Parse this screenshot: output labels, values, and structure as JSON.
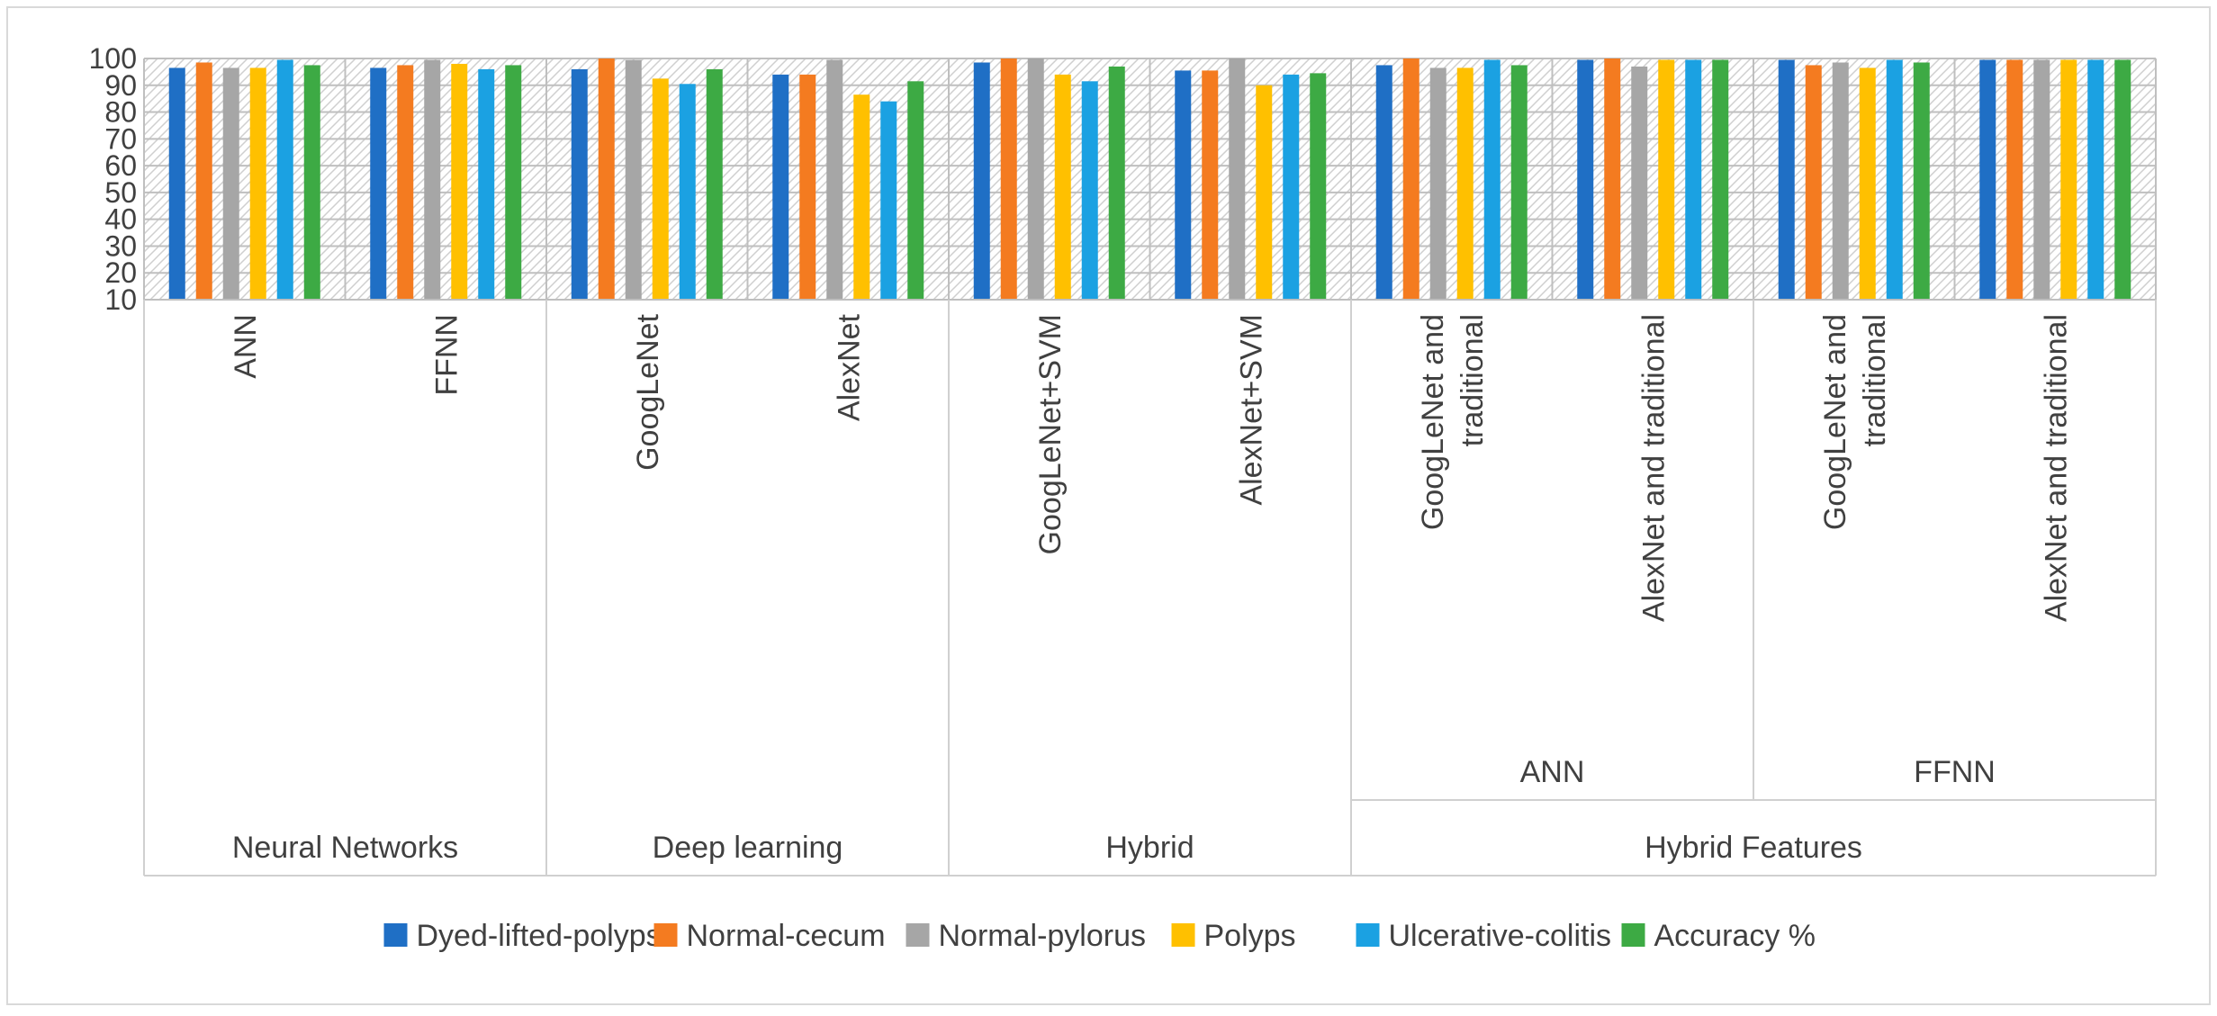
{
  "chart_data": {
    "type": "bar",
    "title": "",
    "xlabel": "",
    "ylabel": "",
    "ylim": [
      10,
      100
    ],
    "yticks": [
      10,
      20,
      30,
      40,
      50,
      60,
      70,
      80,
      90,
      100
    ],
    "grid": true,
    "legend_position": "bottom",
    "categories": [
      "ANN",
      "FFNN",
      "GoogLeNet",
      "AlexNet",
      "GoogLeNet+SVM",
      "AlexNet+SVM",
      "GoogLeNet and traditional",
      "AlexNet and traditional",
      "GoogLeNet and traditional",
      "AlexNet and traditional"
    ],
    "category_lines": [
      [
        "ANN"
      ],
      [
        "FFNN"
      ],
      [
        "GoogLeNet"
      ],
      [
        "AlexNet"
      ],
      [
        "GoogLeNet+SVM"
      ],
      [
        "AlexNet+SVM"
      ],
      [
        "GoogLeNet and",
        "traditional"
      ],
      [
        "AlexNet and traditional"
      ],
      [
        "GoogLeNet and",
        "traditional"
      ],
      [
        "AlexNet and traditional"
      ]
    ],
    "subgroups": [
      {
        "label": "ANN",
        "start": 6,
        "end": 7
      },
      {
        "label": "FFNN",
        "start": 8,
        "end": 9
      }
    ],
    "groups": [
      {
        "label": "Neural Networks",
        "start": 0,
        "end": 1
      },
      {
        "label": "Deep learning",
        "start": 2,
        "end": 3
      },
      {
        "label": "Hybrid",
        "start": 4,
        "end": 5
      },
      {
        "label": "Hybrid Features",
        "start": 6,
        "end": 9
      }
    ],
    "series": [
      {
        "name": "Dyed-lifted-polyps",
        "color": "#1f6fc5",
        "values": [
          96.5,
          96.5,
          96,
          94,
          98.5,
          95.5,
          97.5,
          99.5,
          99.5,
          99.5
        ]
      },
      {
        "name": "Normal-cecum",
        "color": "#f47b20",
        "values": [
          98.5,
          97.5,
          100,
          94,
          100,
          95.5,
          100,
          100,
          97.5,
          99.5
        ]
      },
      {
        "name": "Normal-pylorus",
        "color": "#a6a6a6",
        "values": [
          96.5,
          99.5,
          99.5,
          99.5,
          100,
          100,
          96.5,
          97,
          98.5,
          99.5
        ]
      },
      {
        "name": "Polyps",
        "color": "#ffc000",
        "values": [
          96.5,
          98,
          92.5,
          86.5,
          94,
          90,
          96.5,
          99.5,
          96.5,
          99.5
        ]
      },
      {
        "name": "Ulcerative-colitis",
        "color": "#1ba1e2",
        "values": [
          99.5,
          96,
          90.5,
          84,
          91.5,
          94,
          99.5,
          99.5,
          99.5,
          99.5
        ]
      },
      {
        "name": "Accuracy %",
        "color": "#3daa44",
        "values": [
          97.5,
          97.5,
          96,
          91.5,
          97,
          94.5,
          97.5,
          99.5,
          98.5,
          99.5
        ]
      }
    ]
  }
}
